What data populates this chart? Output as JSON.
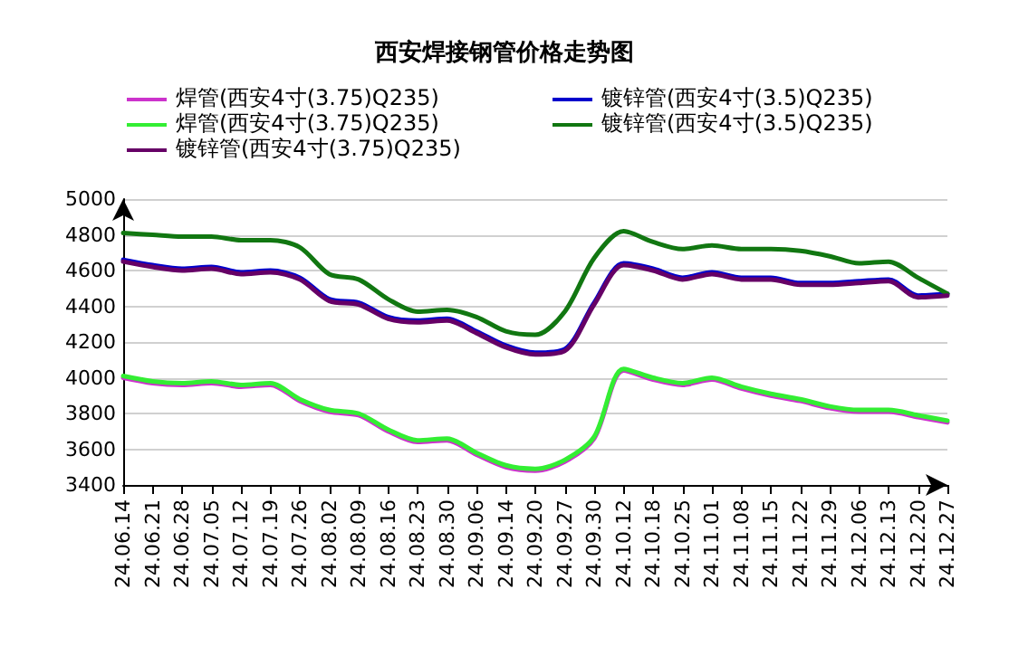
{
  "chart_data": {
    "type": "line",
    "title": "西安焊接钢管价格走势图",
    "categories": [
      "24.06.14",
      "24.06.21",
      "24.06.28",
      "24.07.05",
      "24.07.12",
      "24.07.19",
      "24.07.26",
      "24.08.02",
      "24.08.09",
      "24.08.16",
      "24.08.23",
      "24.08.30",
      "24.09.06",
      "24.09.14",
      "24.09.20",
      "24.09.27",
      "24.09.30",
      "24.10.12",
      "24.10.18",
      "24.10.25",
      "24.11.01",
      "24.11.08",
      "24.11.15",
      "24.11.22",
      "24.11.29",
      "24.12.06",
      "24.12.13",
      "24.12.20",
      "24.12.27"
    ],
    "series": [
      {
        "name": "焊管(西安4寸(3.75)Q235)",
        "color": "#cc33cc",
        "values": [
          4000,
          3970,
          3960,
          3970,
          3950,
          3960,
          3870,
          3810,
          3790,
          3700,
          3640,
          3650,
          3570,
          3500,
          3480,
          3530,
          3660,
          4040,
          3990,
          3960,
          3990,
          3940,
          3900,
          3870,
          3830,
          3810,
          3810,
          3780,
          3750
        ]
      },
      {
        "name": "镀锌管(西安4寸(3.5)Q235)",
        "color": "#0000cc",
        "values": [
          4660,
          4630,
          4610,
          4620,
          4590,
          4600,
          4560,
          4440,
          4420,
          4340,
          4320,
          4330,
          4260,
          4180,
          4140,
          4160,
          4420,
          4640,
          4610,
          4560,
          4590,
          4560,
          4560,
          4530,
          4530,
          4540,
          4550,
          4460,
          4470
        ]
      },
      {
        "name": "焊管(西安4寸(3.75)Q235)",
        "color": "#33ee33",
        "values": [
          4010,
          3980,
          3970,
          3980,
          3960,
          3970,
          3880,
          3820,
          3800,
          3710,
          3650,
          3660,
          3580,
          3510,
          3490,
          3540,
          3670,
          4050,
          4000,
          3970,
          4000,
          3950,
          3910,
          3880,
          3840,
          3820,
          3820,
          3790,
          3760
        ]
      },
      {
        "name": "镀锌管(西安4寸(3.5)Q235)",
        "color": "#117711",
        "values": [
          4810,
          4800,
          4790,
          4790,
          4770,
          4770,
          4730,
          4580,
          4550,
          4440,
          4370,
          4380,
          4340,
          4260,
          4240,
          4370,
          4670,
          4820,
          4760,
          4720,
          4740,
          4720,
          4720,
          4710,
          4680,
          4640,
          4650,
          4560,
          4470
        ]
      },
      {
        "name": "镀锌管(西安4寸(3.75)Q235)",
        "color": "#660066",
        "values": [
          4650,
          4620,
          4600,
          4610,
          4580,
          4590,
          4550,
          4430,
          4410,
          4330,
          4310,
          4320,
          4250,
          4170,
          4130,
          4150,
          4410,
          4630,
          4600,
          4550,
          4580,
          4550,
          4550,
          4520,
          4520,
          4530,
          4540,
          4450,
          4460
        ]
      }
    ],
    "ylim": [
      3400,
      5000
    ],
    "yticks": [
      3400,
      3600,
      3800,
      4000,
      4200,
      4400,
      4600,
      4800,
      5000
    ],
    "grid": "y",
    "legend": "top",
    "marker": "none",
    "line_style": "solid"
  }
}
